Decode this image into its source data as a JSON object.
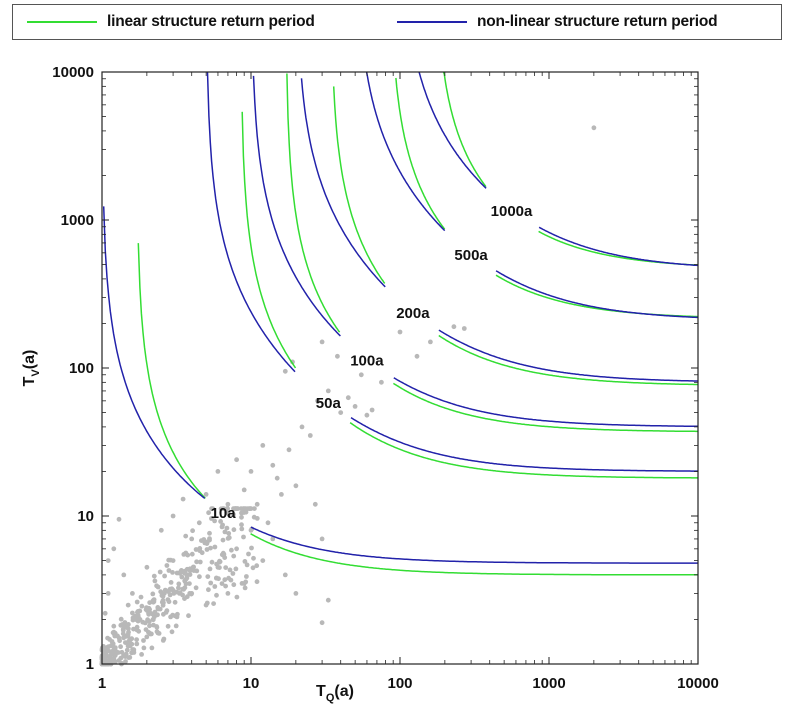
{
  "legend": {
    "items": [
      {
        "label": "linear structure return period",
        "color": "#33dd33"
      },
      {
        "label": "non-linear structure return period",
        "color": "#2222aa"
      }
    ]
  },
  "chart_data": {
    "type": "line",
    "xscale": "log",
    "yscale": "log",
    "xlim": [
      1,
      10000
    ],
    "ylim": [
      1,
      10000
    ],
    "x_ticks": [
      "1",
      "10",
      "100",
      "1000",
      "10000"
    ],
    "y_ticks": [
      "1",
      "10",
      "100",
      "1000",
      "10000"
    ],
    "xlabel_main": "T",
    "xlabel_sub": "Q",
    "xlabel_unit": "(a)",
    "ylabel_main": "T",
    "ylabel_sub": "V",
    "ylabel_unit": "(a)",
    "colors": {
      "linear": "#33dd33",
      "nonlinear": "#2222aa",
      "points": "#b8b8b8"
    },
    "return_periods": [
      {
        "label": "10a",
        "T": 10,
        "linear_asym": 4.0,
        "nonlinear_asym": 4.8,
        "label_at": [
          6.5,
          10.5
        ],
        "gap_x": [
          5.0,
          9.8
        ]
      },
      {
        "label": "50a",
        "T": 50,
        "linear_asym": 18,
        "nonlinear_asym": 20,
        "label_at": [
          33,
          58
        ],
        "gap_x": [
          20,
          46
        ]
      },
      {
        "label": "100a",
        "T": 100,
        "linear_asym": 37,
        "nonlinear_asym": 40,
        "label_at": [
          60,
          112
        ],
        "gap_x": [
          40,
          90
        ]
      },
      {
        "label": "200a",
        "T": 200,
        "linear_asym": 76,
        "nonlinear_asym": 80,
        "label_at": [
          122,
          235
        ],
        "gap_x": [
          80,
          180
        ]
      },
      {
        "label": "500a",
        "T": 500,
        "linear_asym": 215,
        "nonlinear_asym": 210,
        "label_at": [
          300,
          580
        ],
        "gap_x": [
          200,
          440
        ]
      },
      {
        "label": "1000a",
        "T": 1000,
        "linear_asym": 470,
        "nonlinear_asym": 460,
        "label_at": [
          560,
          1150
        ],
        "gap_x": [
          380,
          850
        ]
      }
    ],
    "scatter_points": [
      [
        2000,
        4200
      ],
      [
        55,
        90
      ],
      [
        75,
        80
      ],
      [
        30,
        150
      ],
      [
        38,
        120
      ],
      [
        100,
        175
      ],
      [
        130,
        120
      ],
      [
        230,
        190
      ],
      [
        270,
        185
      ],
      [
        160,
        150
      ],
      [
        17,
        95
      ],
      [
        19,
        110
      ],
      [
        28,
        60
      ],
      [
        33,
        70
      ],
      [
        40,
        50
      ],
      [
        50,
        55
      ],
      [
        60,
        48
      ],
      [
        65,
        52
      ],
      [
        45,
        63
      ],
      [
        22,
        40
      ],
      [
        25,
        35
      ],
      [
        18,
        28
      ],
      [
        14,
        22
      ],
      [
        12,
        30
      ],
      [
        15,
        18
      ],
      [
        10,
        20
      ],
      [
        8,
        24
      ],
      [
        9,
        15
      ],
      [
        6,
        20
      ],
      [
        7,
        12
      ],
      [
        5,
        14
      ],
      [
        11,
        12
      ],
      [
        13,
        9
      ],
      [
        16,
        14
      ],
      [
        20,
        16
      ],
      [
        27,
        12
      ],
      [
        30,
        7
      ],
      [
        33,
        2.7
      ],
      [
        30,
        1.9
      ],
      [
        17,
        4
      ],
      [
        20,
        3
      ],
      [
        12,
        5
      ],
      [
        14,
        7
      ],
      [
        8,
        6
      ],
      [
        10,
        8
      ],
      [
        4.5,
        9
      ],
      [
        3.5,
        13
      ],
      [
        4,
        7
      ],
      [
        3,
        10
      ],
      [
        2.5,
        8
      ],
      [
        6,
        4.5
      ],
      [
        7,
        3
      ],
      [
        5,
        2.5
      ],
      [
        9,
        3.5
      ],
      [
        4,
        3
      ],
      [
        3,
        5
      ],
      [
        2,
        4.5
      ],
      [
        2.2,
        2
      ],
      [
        1.6,
        3
      ],
      [
        1.3,
        9.5
      ],
      [
        1.2,
        6
      ],
      [
        1.1,
        5
      ],
      [
        1.4,
        4
      ],
      [
        1.1,
        3
      ],
      [
        1.5,
        2.5
      ],
      [
        1.8,
        2
      ],
      [
        1.2,
        1.8
      ],
      [
        1.05,
        2.2
      ],
      [
        1.3,
        1.5
      ]
    ]
  }
}
